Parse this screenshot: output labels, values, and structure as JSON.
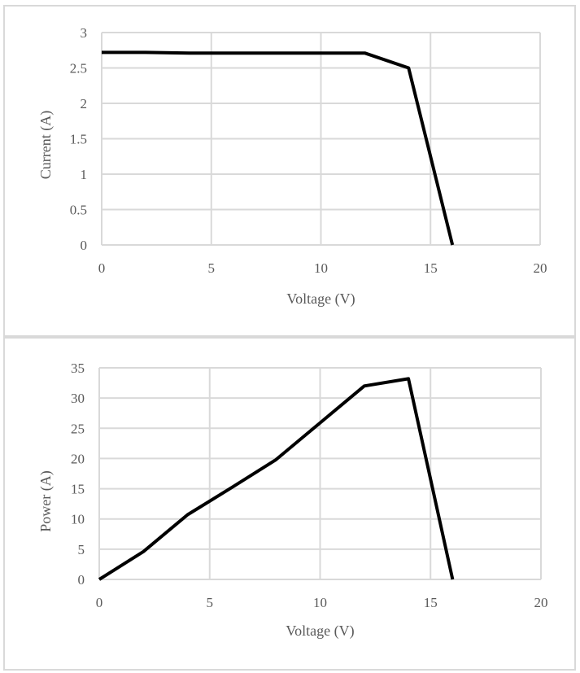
{
  "chart_data": [
    {
      "type": "line",
      "title": "",
      "xlabel": "Voltage (V)",
      "ylabel": "Current (A)",
      "xlim": [
        0,
        20
      ],
      "ylim": [
        0,
        3
      ],
      "xticks": [
        0,
        5,
        10,
        15,
        20
      ],
      "yticks": [
        0,
        0.5,
        1,
        1.5,
        2,
        2.5,
        3
      ],
      "grid": true,
      "legend": "none",
      "color": "#000000",
      "series": [
        {
          "x": [
            0,
            2,
            4,
            6,
            8,
            10,
            12,
            14,
            16
          ],
          "y": [
            2.72,
            2.72,
            2.71,
            2.71,
            2.71,
            2.71,
            2.71,
            2.5,
            0
          ]
        }
      ]
    },
    {
      "type": "line",
      "title": "",
      "xlabel": "Voltage (V)",
      "ylabel": "Power (A)",
      "xlim": [
        0,
        20
      ],
      "ylim": [
        0,
        35
      ],
      "xticks": [
        0,
        5,
        10,
        15,
        20
      ],
      "yticks": [
        0,
        5,
        10,
        15,
        20,
        25,
        30,
        35
      ],
      "grid": true,
      "legend": "none",
      "color": "#000000",
      "series": [
        {
          "x": [
            0,
            2,
            4,
            6,
            8,
            10,
            12,
            14,
            16
          ],
          "y": [
            0,
            4.6,
            10.7,
            15.2,
            19.8,
            25.9,
            32.0,
            33.2,
            0
          ]
        }
      ]
    }
  ]
}
